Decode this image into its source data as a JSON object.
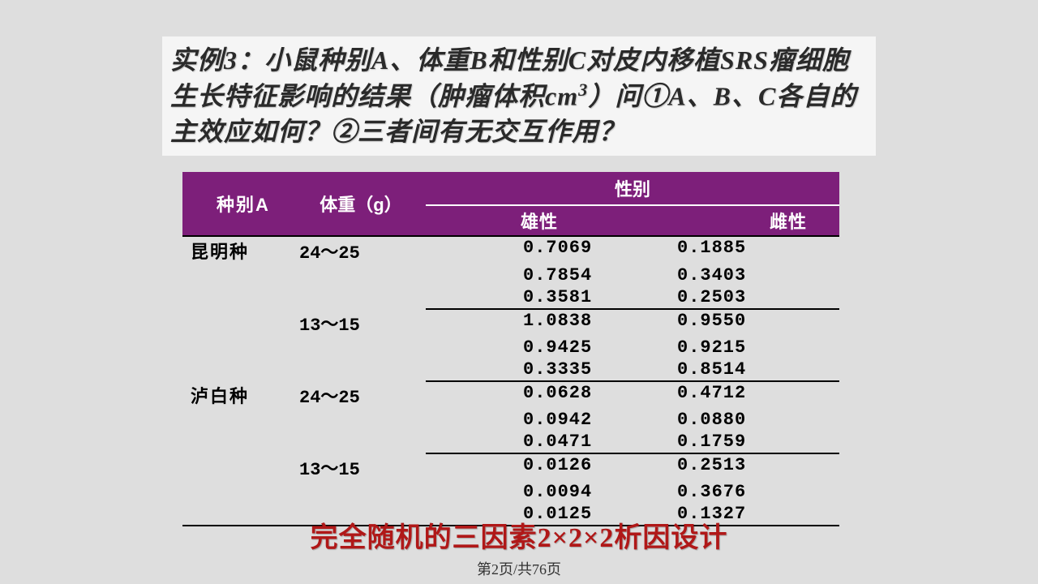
{
  "title": {
    "line1": "实例3：小鼠种别A、体重B和性别C对皮内移植SRS瘤细胞生长特征影响的结果（肿瘤体积cm³）问①A、B、C各自的主效应如何？②三者间有无交互作用？"
  },
  "table": {
    "header_bg": "#7d1f7a",
    "columns": {
      "a": "种别A",
      "b": "体重（g）",
      "sex": "性别",
      "male": "雄性",
      "female": "雌性"
    },
    "groups": [
      {
        "species": "昆明种",
        "weights": [
          {
            "label": "24～25",
            "rows": [
              [
                "0.7069",
                "0.1885"
              ],
              [
                "0.7854",
                "0.3403"
              ],
              [
                "0.3581",
                "0.2503"
              ]
            ]
          },
          {
            "label": "13～15",
            "rows": [
              [
                "1.0838",
                "0.9550"
              ],
              [
                "0.9425",
                "0.9215"
              ],
              [
                "0.3335",
                "0.8514"
              ]
            ]
          }
        ]
      },
      {
        "species": "泸白种",
        "weights": [
          {
            "label": "24～25",
            "rows": [
              [
                "0.0628",
                "0.4712"
              ],
              [
                "0.0942",
                "0.0880"
              ],
              [
                "0.0471",
                "0.1759"
              ]
            ]
          },
          {
            "label": "13～15",
            "rows": [
              [
                "0.0126",
                "0.2513"
              ],
              [
                "0.0094",
                "0.3676"
              ],
              [
                "0.0125",
                "0.1327"
              ]
            ]
          }
        ]
      }
    ]
  },
  "caption": "完全随机的三因素2×2×2析因设计",
  "pager": "第2页/共76页"
}
